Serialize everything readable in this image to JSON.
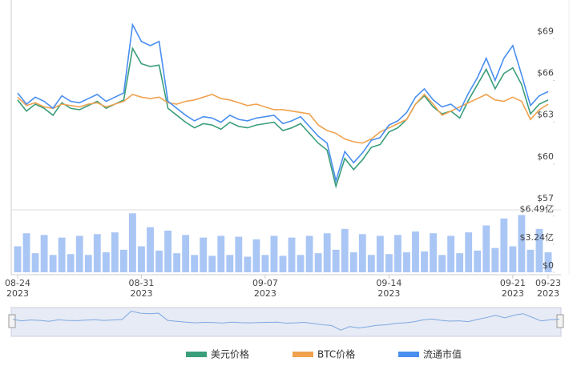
{
  "chart_data": {
    "type": "line",
    "categories": [
      "08-24\n2023",
      null,
      null,
      null,
      null,
      null,
      null,
      null,
      null,
      null,
      null,
      null,
      null,
      null,
      "08-31\n2023",
      null,
      null,
      null,
      null,
      null,
      null,
      null,
      null,
      null,
      null,
      null,
      null,
      null,
      "09-07\n2023",
      null,
      null,
      null,
      null,
      null,
      null,
      null,
      null,
      null,
      null,
      null,
      null,
      null,
      "09-14\n2023",
      null,
      null,
      null,
      null,
      null,
      null,
      null,
      null,
      null,
      null,
      null,
      null,
      null,
      "09-21\n2023",
      null,
      null,
      null,
      "09-23\n2023"
    ],
    "series": [
      {
        "name": "美元价格",
        "color": "#3a9e7a",
        "values": [
          64.6,
          63.8,
          64.3,
          64.0,
          63.5,
          64.4,
          64.0,
          63.9,
          64.2,
          64.5,
          64.0,
          64.3,
          64.6,
          68.3,
          67.2,
          67.0,
          67.1,
          64.0,
          63.5,
          63.0,
          62.6,
          62.9,
          62.8,
          62.5,
          63.0,
          62.7,
          62.6,
          62.8,
          62.9,
          63.0,
          62.4,
          62.6,
          62.9,
          62.2,
          61.5,
          61.0,
          58.4,
          60.4,
          59.6,
          60.3,
          61.2,
          61.4,
          62.3,
          62.6,
          63.2,
          64.3,
          64.9,
          64.1,
          63.6,
          63.8,
          63.3,
          64.6,
          65.7,
          66.8,
          65.4,
          66.5,
          66.9,
          65.7,
          63.6,
          64.3,
          64.6
        ]
      },
      {
        "name": "BTC价格",
        "color": "#f0a24f",
        "values": [
          64.8,
          64.2,
          64.4,
          64.1,
          64.0,
          64.3,
          64.2,
          64.1,
          64.3,
          64.4,
          64.1,
          64.3,
          64.5,
          65.0,
          64.8,
          64.7,
          64.8,
          64.4,
          64.3,
          64.5,
          64.6,
          64.8,
          65.0,
          64.7,
          64.6,
          64.4,
          64.2,
          64.3,
          64.1,
          63.9,
          63.9,
          63.8,
          63.7,
          63.6,
          62.8,
          62.4,
          62.2,
          61.8,
          61.6,
          61.5,
          61.8,
          62.3,
          62.6,
          62.9,
          63.2,
          64.3,
          65.0,
          64.3,
          63.5,
          63.8,
          64.1,
          64.4,
          64.7,
          65.0,
          64.6,
          64.5,
          64.8,
          64.5,
          63.2,
          63.9,
          64.3
        ]
      },
      {
        "name": "流通市值",
        "color": "#4a8ff0",
        "values": [
          65.1,
          64.3,
          64.8,
          64.5,
          64.0,
          64.9,
          64.5,
          64.4,
          64.7,
          65.0,
          64.5,
          64.8,
          65.1,
          70.0,
          68.8,
          68.5,
          68.8,
          64.5,
          64.0,
          63.5,
          63.1,
          63.4,
          63.3,
          63.0,
          63.5,
          63.2,
          63.1,
          63.3,
          63.4,
          63.5,
          62.9,
          63.1,
          63.4,
          62.7,
          62.0,
          61.5,
          58.8,
          60.9,
          60.1,
          60.8,
          61.7,
          61.9,
          62.8,
          63.1,
          63.7,
          64.8,
          65.4,
          64.6,
          64.1,
          64.3,
          63.8,
          65.1,
          66.2,
          67.6,
          66.0,
          67.6,
          68.5,
          66.4,
          64.2,
          64.9,
          65.2
        ]
      }
    ],
    "ylim": [
      57,
      71.2
    ],
    "yticks": [
      {
        "value": 57,
        "label": "$57"
      },
      {
        "value": 60,
        "label": "$60"
      },
      {
        "value": 63,
        "label": "$63"
      },
      {
        "value": 66,
        "label": "$66"
      },
      {
        "value": 69,
        "label": "$69"
      }
    ],
    "volume": {
      "color": "#a9c6f5",
      "values": [
        300000000,
        450000000,
        220000000,
        430000000,
        200000000,
        400000000,
        210000000,
        420000000,
        200000000,
        440000000,
        230000000,
        460000000,
        260000000,
        680000000,
        300000000,
        520000000,
        250000000,
        480000000,
        220000000,
        430000000,
        200000000,
        400000000,
        190000000,
        420000000,
        200000000,
        410000000,
        180000000,
        380000000,
        200000000,
        420000000,
        190000000,
        400000000,
        200000000,
        420000000,
        220000000,
        450000000,
        260000000,
        500000000,
        230000000,
        440000000,
        200000000,
        420000000,
        210000000,
        430000000,
        230000000,
        470000000,
        240000000,
        450000000,
        200000000,
        420000000,
        220000000,
        460000000,
        250000000,
        540000000,
        280000000,
        620000000,
        300000000,
        660000000,
        260000000,
        500000000,
        230000000
      ],
      "ylim": [
        0,
        720000000
      ],
      "yticks": [
        {
          "value": 0,
          "label": "$0"
        },
        {
          "value": 324000000,
          "label": "$3.24亿"
        },
        {
          "value": 649000000,
          "label": "$6.49亿"
        }
      ]
    },
    "legend": "bottom"
  }
}
